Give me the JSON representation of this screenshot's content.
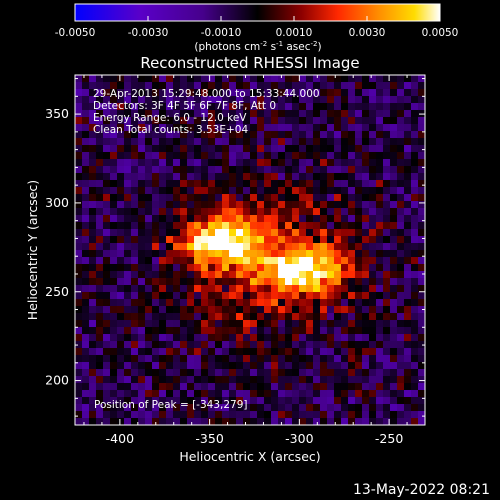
{
  "colorbar": {
    "tick_labels": [
      "-0.0050",
      "-0.0030",
      "-0.0010",
      "0.0010",
      "0.0030",
      "0.0050"
    ],
    "tick_values": [
      -0.005,
      -0.003,
      -0.001,
      0.001,
      0.003,
      0.005
    ],
    "range": [
      -0.005,
      0.005
    ],
    "unit_main": "(photons cm",
    "unit_sup1": "-2",
    "unit_mid": " s",
    "unit_sup2": "-1",
    "unit_end": " asec",
    "unit_sup3": "-2",
    "unit_close": ")"
  },
  "title": "Reconstructed RHESSI Image",
  "info": {
    "line1": "29-Apr-2013 15:29:48.000 to 15:33:44.000",
    "line2": "Detectors: 3F 4F 5F 6F 7F 8F, Att 0",
    "line3": "Energy Range: 6.0 - 12.0 keV",
    "line4": "Clean     Total counts: 3.53E+04",
    "peak": "Position of Peak = [-343,279]"
  },
  "footer": {
    "timestamp": "13-May-2022 08:21"
  },
  "colors": {
    "background": "#000000",
    "colormap": [
      "#0000ff",
      "#5a00c8",
      "#46008c",
      "#000000",
      "#8c0000",
      "#ff2800",
      "#ff8c00",
      "#ffdc00",
      "#ffffff"
    ]
  },
  "chart_data": {
    "type": "heatmap",
    "title": "Reconstructed RHESSI Image",
    "xlabel": "Heliocentric X (arcsec)",
    "ylabel": "Heliocentric Y (arcsec)",
    "xlim": [
      -425,
      -230
    ],
    "ylim": [
      175,
      372
    ],
    "xticks": [
      -400,
      -350,
      -300,
      -250
    ],
    "yticks": [
      200,
      250,
      300,
      350
    ],
    "xtick_labels": [
      "-400",
      "-350",
      "-300",
      "-250"
    ],
    "ytick_labels": [
      "200",
      "250",
      "300",
      "350"
    ],
    "value_range": [
      -0.005,
      0.005
    ],
    "peak": {
      "x": -343,
      "y": 279
    },
    "sources": [
      {
        "x": -343,
        "y": 279,
        "amplitude": 0.005,
        "sx": 14,
        "sy": 9
      },
      {
        "x": -296,
        "y": 262,
        "amplitude": 0.0046,
        "sx": 16,
        "sy": 9
      }
    ]
  }
}
